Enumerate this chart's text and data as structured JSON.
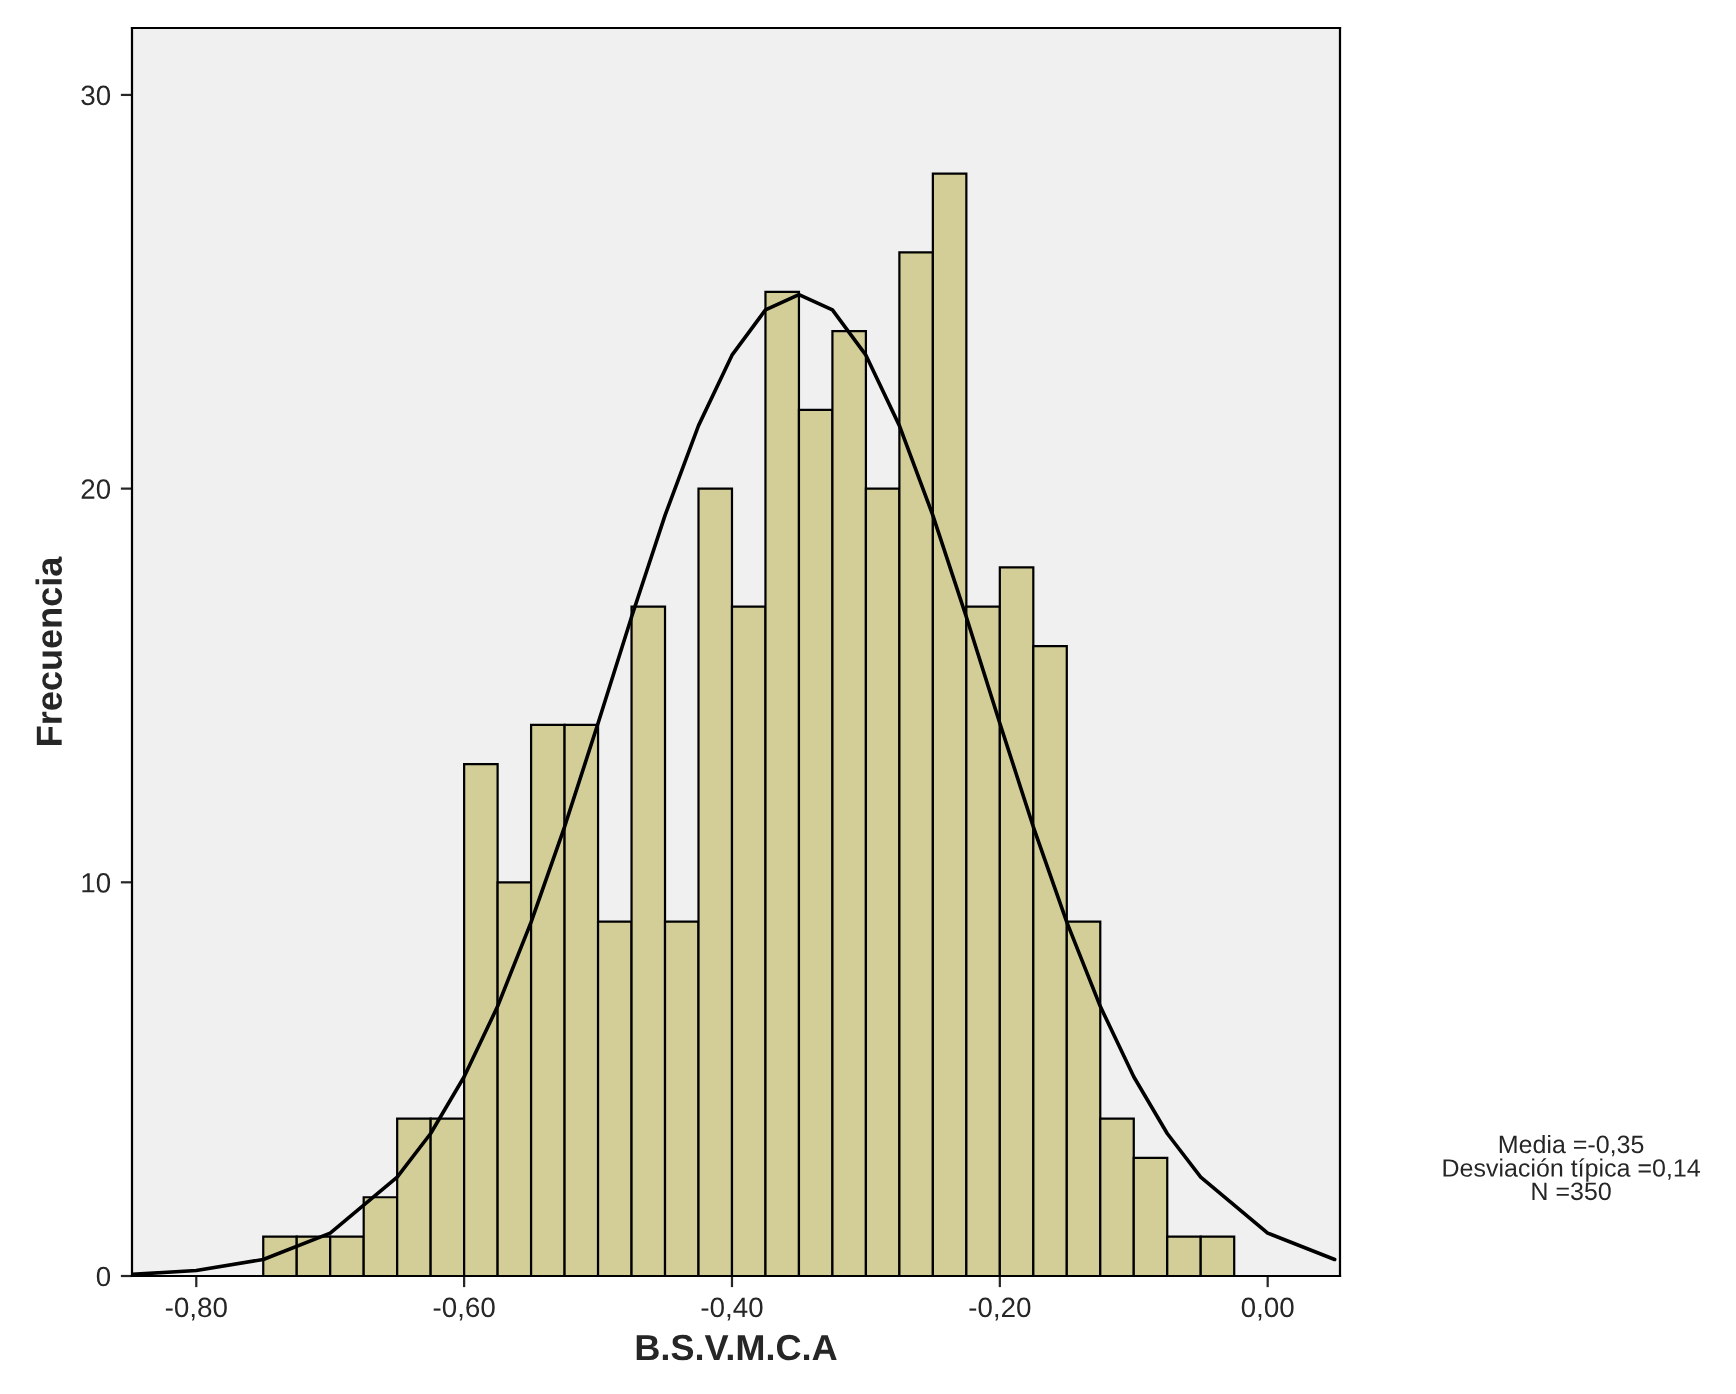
{
  "chart_data": {
    "type": "histogram",
    "xlabel": "B.S.V.M.C.A",
    "ylabel": "Frecuencia",
    "bins": [
      -0.75,
      -0.725,
      -0.7,
      -0.675,
      -0.65,
      -0.625,
      -0.6,
      -0.575,
      -0.55,
      -0.525,
      -0.5,
      -0.475,
      -0.45,
      -0.425,
      -0.4,
      -0.375,
      -0.35,
      -0.325,
      -0.3,
      -0.275,
      -0.25,
      -0.225,
      -0.2,
      -0.175,
      -0.15,
      -0.125,
      -0.1,
      -0.075,
      -0.05,
      -0.025
    ],
    "values": [
      1,
      1,
      1,
      2,
      4,
      4,
      13,
      10,
      14,
      14,
      9,
      17,
      9,
      20,
      17,
      25,
      22,
      24,
      20,
      26,
      28,
      17,
      18,
      16,
      9,
      4,
      3,
      1,
      1
    ],
    "color": "#d3ce97",
    "series": [
      {
        "type": "line",
        "color": "#000000",
        "x": [
          -0.848,
          -0.8,
          -0.75,
          -0.7,
          -0.65,
          -0.625,
          -0.6,
          -0.575,
          -0.55,
          -0.525,
          -0.5,
          -0.475,
          -0.45,
          -0.425,
          -0.4,
          -0.375,
          -0.35,
          -0.325,
          -0.3,
          -0.275,
          -0.25,
          -0.225,
          -0.2,
          -0.175,
          -0.15,
          -0.125,
          -0.1,
          -0.075,
          -0.05,
          0.0,
          0.05
        ],
        "values": [
          0.04,
          0.14,
          0.42,
          1.09,
          2.51,
          3.62,
          5.06,
          6.85,
          8.99,
          11.41,
          14.04,
          16.74,
          19.32,
          21.6,
          23.39,
          24.54,
          24.93,
          24.54,
          23.39,
          21.6,
          19.32,
          16.74,
          14.04,
          11.41,
          8.99,
          6.85,
          5.06,
          3.62,
          2.51,
          1.09,
          0.42
        ]
      }
    ],
    "xlim": [
      -0.848,
      0.054
    ],
    "ylim": [
      0,
      31.7
    ],
    "xticks": [
      {
        "value": -0.8,
        "label": "-0,80"
      },
      {
        "value": -0.6,
        "label": "-0,60"
      },
      {
        "value": -0.4,
        "label": "-0,40"
      },
      {
        "value": -0.2,
        "label": "-0,20"
      },
      {
        "value": 0.0,
        "label": "0,00"
      }
    ],
    "yticks": [
      0,
      10,
      20,
      30
    ],
    "grid": false,
    "legend": false,
    "annotations": [
      "Media =-0,35\nDesviación típica =0,14\nN =350"
    ]
  }
}
